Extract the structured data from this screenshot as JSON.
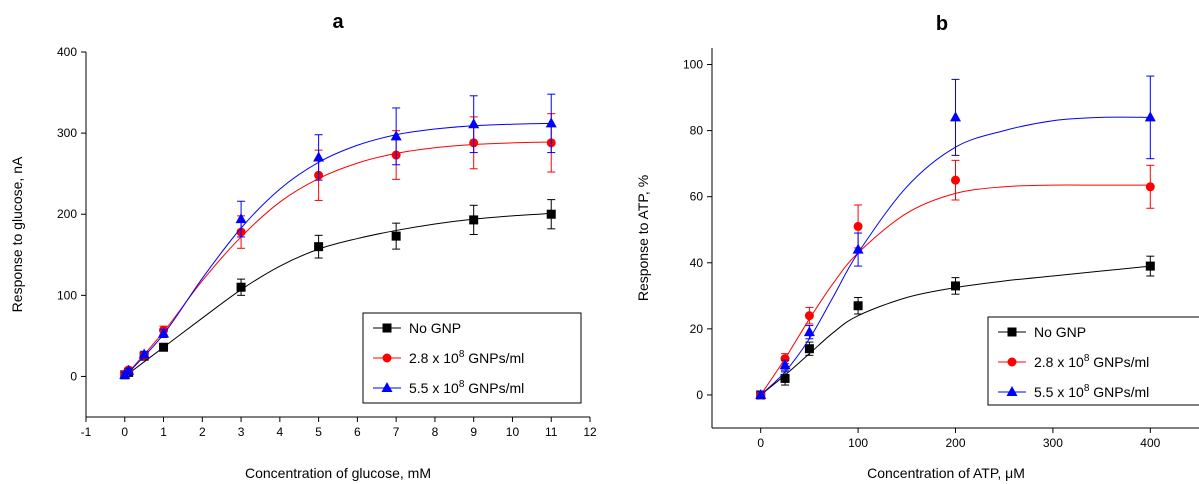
{
  "chart_data": [
    {
      "type": "scatter",
      "title": "a",
      "xlabel": "Concentration of glucose, mM",
      "ylabel": "Response to glucose, nA",
      "xlim": [
        -1,
        12
      ],
      "ylim": [
        -50,
        400
      ],
      "xticks": [
        -1,
        0,
        1,
        2,
        3,
        4,
        5,
        6,
        7,
        8,
        9,
        10,
        11,
        12
      ],
      "yticks": [
        0,
        100,
        200,
        300,
        400
      ],
      "grid": false,
      "legend_position": "bottom-right",
      "series": [
        {
          "name": "No GNP",
          "sup": "",
          "name_suffix": "",
          "color": "#000000",
          "marker": "square",
          "points": [
            [
              0,
              2,
              3
            ],
            [
              0.1,
              5,
              3
            ],
            [
              0.5,
              25,
              4
            ],
            [
              1,
              36,
              4
            ],
            [
              3,
              110,
              10
            ],
            [
              5,
              160,
              14
            ],
            [
              7,
              173,
              16
            ],
            [
              9,
              193,
              18
            ],
            [
              11,
              200,
              18
            ]
          ],
          "curve": [
            [
              0,
              0
            ],
            [
              1,
              36
            ],
            [
              2,
              72
            ],
            [
              3,
              107
            ],
            [
              4,
              136
            ],
            [
              5,
              157
            ],
            [
              6,
              170
            ],
            [
              7,
              180
            ],
            [
              8,
              188
            ],
            [
              9,
              194
            ],
            [
              10,
              198
            ],
            [
              11,
              201
            ]
          ]
        },
        {
          "name": "2.8 x 10",
          "sup": "8",
          "name_suffix": " GNPs/ml",
          "color": "#ff0000",
          "marker": "circle",
          "points": [
            [
              0,
              3,
              3
            ],
            [
              0.1,
              8,
              3
            ],
            [
              0.5,
              26,
              4
            ],
            [
              1,
              57,
              5
            ],
            [
              3,
              178,
              20
            ],
            [
              5,
              248,
              31
            ],
            [
              7,
              273,
              30
            ],
            [
              9,
              288,
              32
            ],
            [
              11,
              288,
              36
            ]
          ],
          "curve": [
            [
              0,
              0
            ],
            [
              1,
              55
            ],
            [
              2,
              118
            ],
            [
              3,
              172
            ],
            [
              4,
              215
            ],
            [
              5,
              244
            ],
            [
              6,
              263
            ],
            [
              7,
              275
            ],
            [
              8,
              282
            ],
            [
              9,
              286
            ],
            [
              10,
              288
            ],
            [
              11,
              289
            ]
          ]
        },
        {
          "name": "5.5 x 10",
          "sup": "8",
          "name_suffix": " GNPs/ml",
          "color": "#0000ff",
          "marker": "triangle",
          "points": [
            [
              0,
              2,
              3
            ],
            [
              0.1,
              7,
              3
            ],
            [
              0.5,
              27,
              4
            ],
            [
              1,
              53,
              5
            ],
            [
              3,
              194,
              22
            ],
            [
              5,
              270,
              28
            ],
            [
              7,
              296,
              35
            ],
            [
              9,
              311,
              35
            ],
            [
              11,
              312,
              36
            ]
          ],
          "curve": [
            [
              0,
              0
            ],
            [
              1,
              52
            ],
            [
              2,
              121
            ],
            [
              3,
              183
            ],
            [
              4,
              231
            ],
            [
              5,
              264
            ],
            [
              6,
              285
            ],
            [
              7,
              298
            ],
            [
              8,
              305
            ],
            [
              9,
              309
            ],
            [
              10,
              311
            ],
            [
              11,
              312
            ]
          ]
        }
      ]
    },
    {
      "type": "scatter",
      "title": "b",
      "xlabel": "Concentration of ATP, μM",
      "ylabel": "Response to ATP, %",
      "xlim": [
        -50,
        450
      ],
      "ylim": [
        -10,
        105
      ],
      "xticks": [
        0,
        100,
        200,
        300,
        400
      ],
      "yticks": [
        0,
        20,
        40,
        60,
        80,
        100
      ],
      "grid": false,
      "legend_position": "bottom-right",
      "series": [
        {
          "name": "No GNP",
          "sup": "",
          "name_suffix": "",
          "color": "#000000",
          "marker": "square",
          "points": [
            [
              0,
              0,
              1
            ],
            [
              25,
              5,
              2
            ],
            [
              50,
              14,
              2
            ],
            [
              100,
              27,
              2.5
            ],
            [
              200,
              33,
              2.5
            ],
            [
              400,
              39,
              3
            ]
          ],
          "curve": [
            [
              0,
              0
            ],
            [
              25,
              6
            ],
            [
              50,
              12.5
            ],
            [
              75,
              19
            ],
            [
              100,
              24
            ],
            [
              150,
              29.5
            ],
            [
              200,
              32.5
            ],
            [
              250,
              34.5
            ],
            [
              300,
              36
            ],
            [
              350,
              37.5
            ],
            [
              400,
              39
            ]
          ]
        },
        {
          "name": "2.8 x 10",
          "sup": "8",
          "name_suffix": " GNPs/ml",
          "color": "#ff0000",
          "marker": "circle",
          "points": [
            [
              0,
              0,
              1
            ],
            [
              25,
              11,
              1.5
            ],
            [
              50,
              24,
              2.5
            ],
            [
              100,
              51,
              6.5
            ],
            [
              200,
              65,
              6
            ],
            [
              400,
              63,
              6.5
            ]
          ],
          "curve": [
            [
              0,
              0
            ],
            [
              25,
              11
            ],
            [
              50,
              23
            ],
            [
              75,
              34
            ],
            [
              100,
              43
            ],
            [
              150,
              55
            ],
            [
              200,
              61
            ],
            [
              250,
              63
            ],
            [
              300,
              63.5
            ],
            [
              350,
              63.5
            ],
            [
              400,
              63.5
            ]
          ]
        },
        {
          "name": "5.5 x 10",
          "sup": "8",
          "name_suffix": " GNPs/ml",
          "color": "#0000ff",
          "marker": "triangle",
          "points": [
            [
              0,
              0,
              1
            ],
            [
              25,
              9,
              1.5
            ],
            [
              50,
              19,
              2
            ],
            [
              100,
              44,
              5
            ],
            [
              200,
              84,
              11.5
            ],
            [
              400,
              84,
              12.5
            ]
          ],
          "curve": [
            [
              0,
              0
            ],
            [
              25,
              7
            ],
            [
              50,
              17
            ],
            [
              75,
              30
            ],
            [
              100,
              43
            ],
            [
              150,
              63
            ],
            [
              200,
              75
            ],
            [
              250,
              80
            ],
            [
              300,
              83
            ],
            [
              350,
              84
            ],
            [
              400,
              84
            ]
          ]
        }
      ]
    }
  ]
}
